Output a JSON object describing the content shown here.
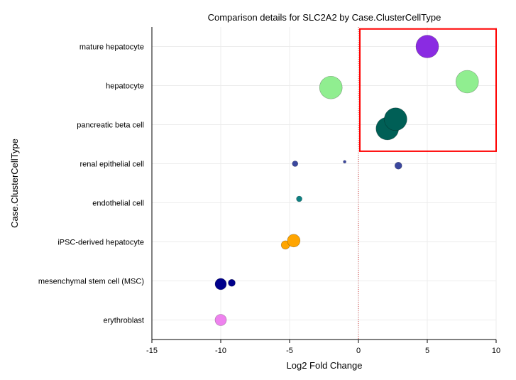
{
  "chart_data": {
    "type": "scatter",
    "title": "Comparison details for SLC2A2 by Case.ClusterCellType",
    "xlabel": "Log2 Fold Change",
    "ylabel": "Case.ClusterCellType",
    "xlim": [
      -15,
      10
    ],
    "xticks": [
      "-15",
      "-10",
      "-5",
      "0",
      "5",
      "10"
    ],
    "grid": true,
    "reference_line_x": 0,
    "categories": [
      "mature hepatocyte",
      "hepatocyte",
      "pancreatic beta cell",
      "renal epithelial cell",
      "endothelial cell",
      "iPSC-derived hepatocyte",
      "mesenchymal stem cell (MSC)",
      "erythroblast"
    ],
    "points": [
      {
        "category": "mature hepatocyte",
        "x": 5.0,
        "offset": 0.0,
        "size": 16,
        "color": "#8a2be2"
      },
      {
        "category": "hepatocyte",
        "x": -2.0,
        "offset": 0.05,
        "size": 16,
        "color": "#90ee90"
      },
      {
        "category": "hepatocyte",
        "x": 7.9,
        "offset": -0.1,
        "size": 16,
        "color": "#90ee90"
      },
      {
        "category": "pancreatic beta cell",
        "x": 2.1,
        "offset": 0.1,
        "size": 16,
        "color": "#005f56"
      },
      {
        "category": "pancreatic beta cell",
        "x": 2.7,
        "offset": -0.14,
        "size": 16,
        "color": "#005f56"
      },
      {
        "category": "renal epithelial cell",
        "x": -4.6,
        "offset": 0.0,
        "size": 4,
        "color": "#3b479e"
      },
      {
        "category": "renal epithelial cell",
        "x": -1.0,
        "offset": -0.05,
        "size": 2,
        "color": "#3b479e"
      },
      {
        "category": "renal epithelial cell",
        "x": 2.9,
        "offset": 0.05,
        "size": 5,
        "color": "#3b479e"
      },
      {
        "category": "endothelial cell",
        "x": -4.3,
        "offset": -0.1,
        "size": 4,
        "color": "#0e8082"
      },
      {
        "category": "iPSC-derived hepatocyte",
        "x": -5.3,
        "offset": 0.08,
        "size": 6,
        "color": "#ffa500"
      },
      {
        "category": "iPSC-derived hepatocyte",
        "x": -4.7,
        "offset": -0.03,
        "size": 9,
        "color": "#ffa500"
      },
      {
        "category": "mesenchymal stem cell (MSC)",
        "x": -10.0,
        "offset": 0.08,
        "size": 8,
        "color": "#00008b"
      },
      {
        "category": "mesenchymal stem cell (MSC)",
        "x": -9.2,
        "offset": 0.05,
        "size": 5,
        "color": "#00008b"
      },
      {
        "category": "erythroblast",
        "x": -10.0,
        "offset": 0.0,
        "size": 8,
        "color": "#ee82ee"
      }
    ],
    "highlight_box": {
      "x": [
        0,
        10
      ],
      "categories": [
        "mature hepatocyte",
        "pancreatic beta cell"
      ],
      "color": "#ff0000"
    },
    "colors": {
      "grid": "#ececec",
      "axis": "#000000",
      "reference_line": "#d04040"
    }
  }
}
